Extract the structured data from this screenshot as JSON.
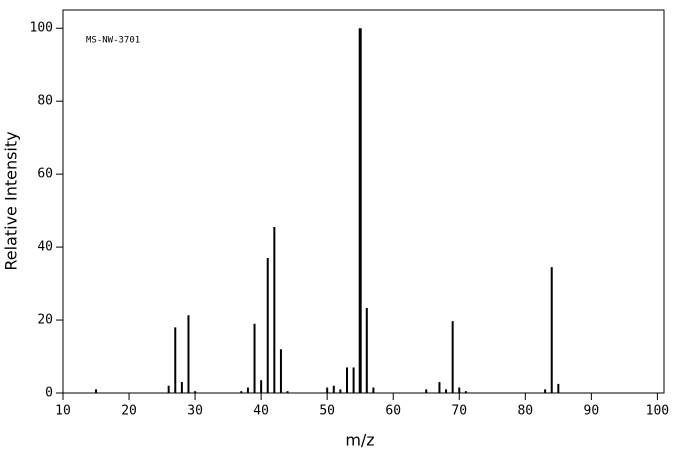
{
  "chart_data": {
    "type": "stem",
    "annotation": "MS-NW-3701",
    "x_label": "m/z",
    "y_label": "Relative Intensity",
    "x": [
      15,
      26,
      27,
      28,
      29,
      30,
      37,
      38,
      39,
      40,
      41,
      42,
      43,
      44,
      50,
      51,
      52,
      53,
      54,
      55,
      56,
      57,
      65,
      67,
      68,
      69,
      70,
      71,
      83,
      84,
      85
    ],
    "values": [
      1,
      2,
      18,
      3,
      21.3,
      0.5,
      0.5,
      1.5,
      19,
      3.5,
      37,
      45.5,
      12,
      0.5,
      1.5,
      2,
      1,
      7,
      7,
      100,
      23.3,
      1.5,
      1,
      3,
      1,
      19.7,
      1.5,
      0.5,
      1,
      34.5,
      2.5
    ],
    "color": "#000000",
    "xlim": [
      10,
      101
    ],
    "ylim": [
      0,
      105
    ],
    "xticks": [
      10,
      20,
      30,
      40,
      50,
      60,
      70,
      80,
      90,
      100
    ],
    "yticks": [
      0,
      20,
      40,
      60,
      80,
      100
    ],
    "grid": false
  }
}
